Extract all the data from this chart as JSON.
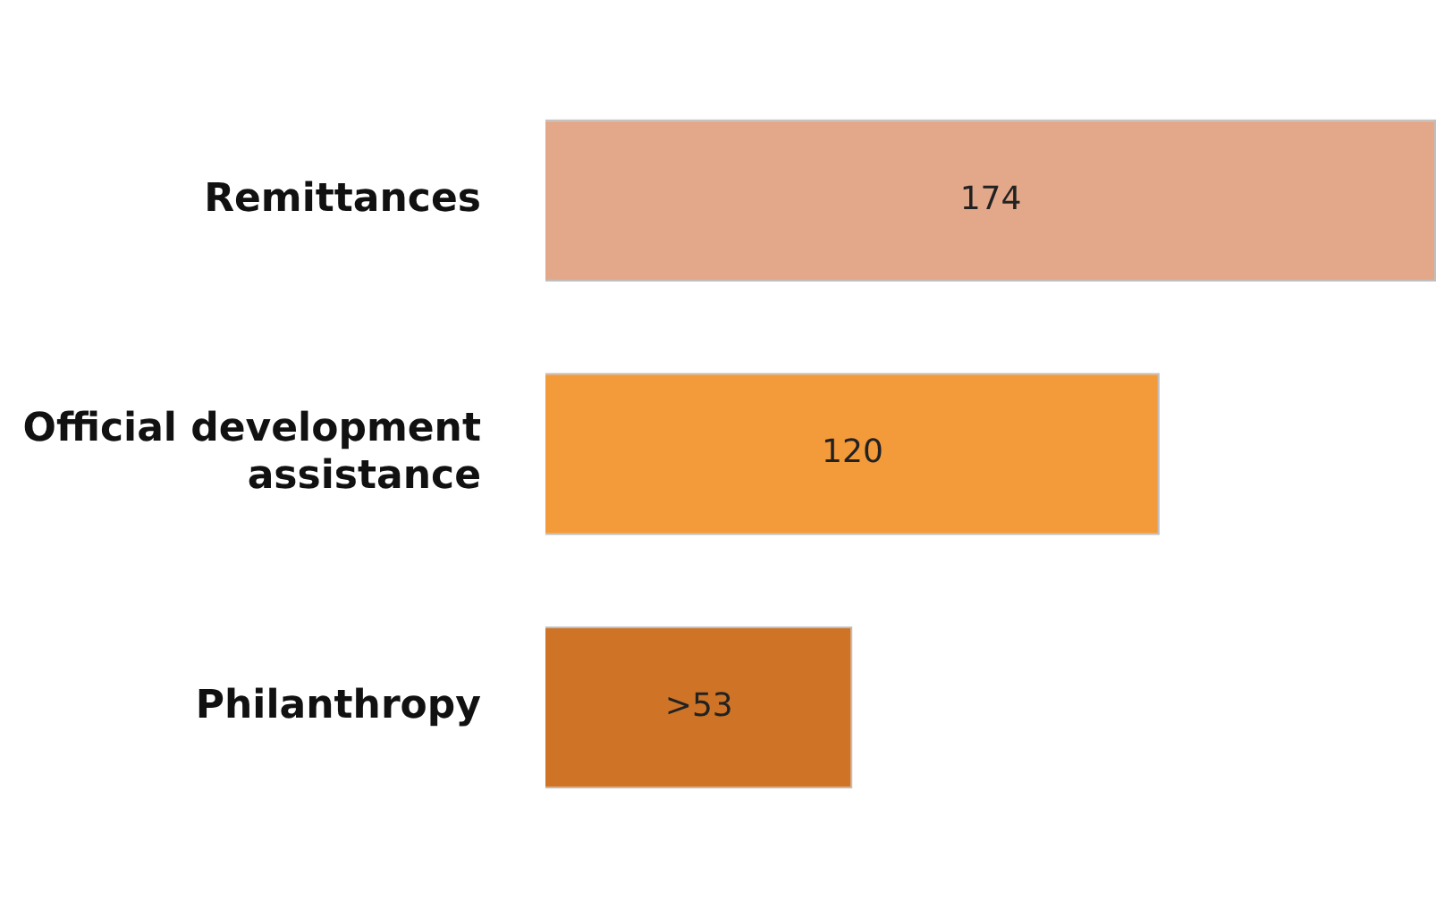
{
  "chart_data": {
    "type": "bar",
    "orientation": "horizontal",
    "categories": [
      "Remittances",
      "Official development assistance",
      "Philanthropy"
    ],
    "values": [
      174,
      120,
      60
    ],
    "colors": [
      "#e3a88a",
      "#f39a3a",
      "#cf7426"
    ],
    "value_labels": [
      "174",
      "120",
      ">53"
    ],
    "xlim": [
      0,
      174
    ],
    "tick_labels": "y",
    "grid": false,
    "legend": false
  }
}
